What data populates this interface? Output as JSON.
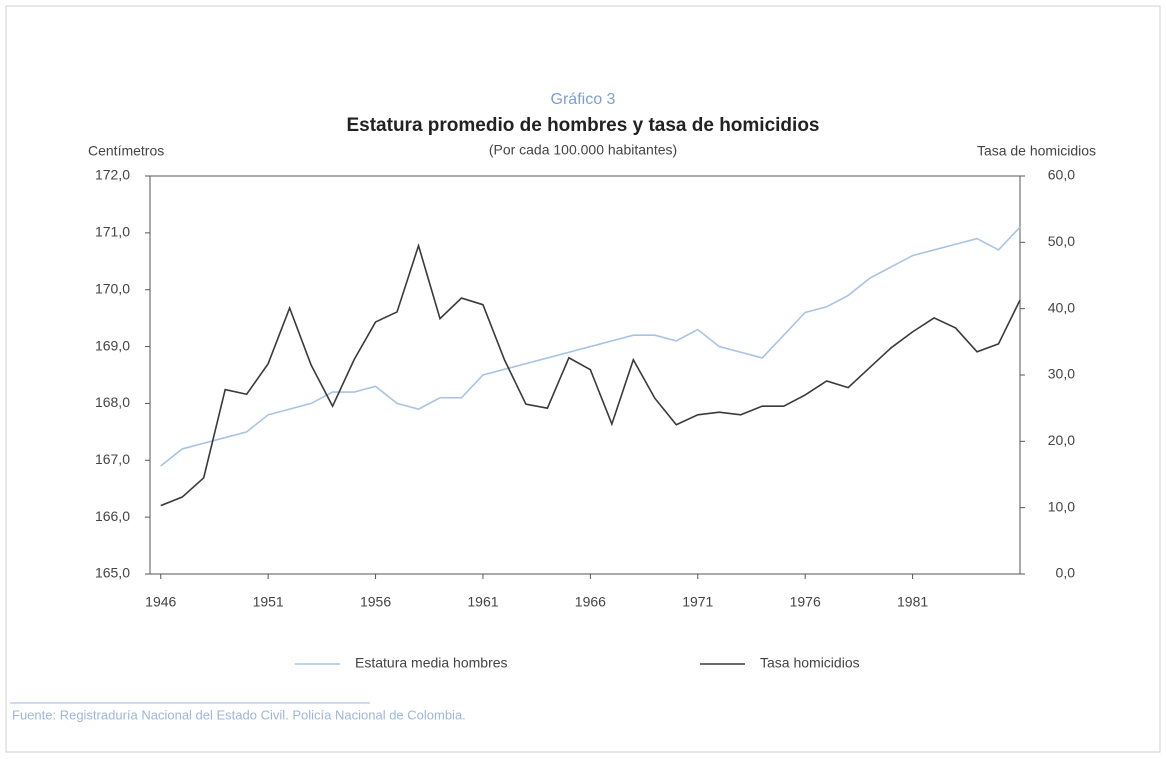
{
  "chart_data": {
    "type": "line",
    "label": "Gráfico 3",
    "title": "Estatura promedio de hombres y tasa de homicidios",
    "subtitle": "(Por cada 100.000 habitantes)",
    "ylabel": "Centímetros",
    "y2label": "Tasa de homicidios",
    "source": "Fuente: Registraduría Nacional del Estado Civil. Policía Nacional de Colombia.",
    "x": [
      1946,
      1947,
      1948,
      1949,
      1950,
      1951,
      1952,
      1953,
      1954,
      1955,
      1956,
      1957,
      1958,
      1959,
      1960,
      1961,
      1962,
      1963,
      1964,
      1965,
      1966,
      1967,
      1968,
      1969,
      1970,
      1971,
      1972,
      1973,
      1974,
      1975,
      1976,
      1977,
      1978,
      1979,
      1980,
      1981,
      1982,
      1983,
      1984,
      1985,
      1986
    ],
    "xlim": [
      1945.5,
      1986
    ],
    "xticks": [
      1946,
      1951,
      1956,
      1961,
      1966,
      1971,
      1976,
      1981
    ],
    "ylim": [
      165,
      172
    ],
    "yticks": [
      {
        "value": 165,
        "label": "165,0"
      },
      {
        "value": 166,
        "label": "166,0"
      },
      {
        "value": 167,
        "label": "167,0"
      },
      {
        "value": 168,
        "label": "168,0"
      },
      {
        "value": 169,
        "label": "169,0"
      },
      {
        "value": 170,
        "label": "170,0"
      },
      {
        "value": 171,
        "label": "171,0"
      },
      {
        "value": 172,
        "label": "172,0"
      }
    ],
    "y2lim": [
      0,
      60
    ],
    "y2ticks": [
      {
        "value": 0,
        "label": "0,0"
      },
      {
        "value": 10,
        "label": "10,0"
      },
      {
        "value": 20,
        "label": "20,0"
      },
      {
        "value": 30,
        "label": "30,0"
      },
      {
        "value": 40,
        "label": "40,0"
      },
      {
        "value": 50,
        "label": "50,0"
      },
      {
        "value": 60,
        "label": "60,0"
      }
    ],
    "series": [
      {
        "name": "Estatura media hombres",
        "color": "#a9c3e6",
        "values": [
          166.9,
          167.2,
          167.3,
          167.4,
          167.5,
          167.8,
          167.9,
          168.0,
          168.2,
          168.2,
          168.3,
          168.0,
          167.9,
          168.1,
          168.1,
          168.5,
          168.6,
          168.7,
          168.8,
          168.9,
          169.0,
          169.1,
          169.2,
          169.2,
          169.1,
          169.3,
          169.0,
          168.9,
          168.8,
          169.2,
          169.6,
          169.7,
          169.9,
          170.2,
          170.4,
          170.6,
          170.7,
          170.8,
          170.9,
          170.7,
          171.1
        ]
      },
      {
        "name": "Tasa homicidios",
        "color": "#3a3a3a",
        "axis": "y2",
        "values": [
          10.3,
          11.6,
          14.5,
          27.8,
          27.1,
          31.7,
          40.1,
          31.5,
          25.3,
          32.3,
          38.0,
          39.5,
          49.5,
          38.5,
          41.6,
          40.6,
          32.3,
          25.6,
          25.0,
          32.6,
          30.8,
          22.6,
          32.3,
          26.5,
          22.5,
          24.0,
          24.4,
          24.0,
          25.3,
          25.3,
          27.0,
          29.1,
          28.1,
          31.1,
          34.1,
          36.5,
          38.6,
          37.1,
          33.5,
          34.7,
          41.3
        ]
      }
    ]
  }
}
